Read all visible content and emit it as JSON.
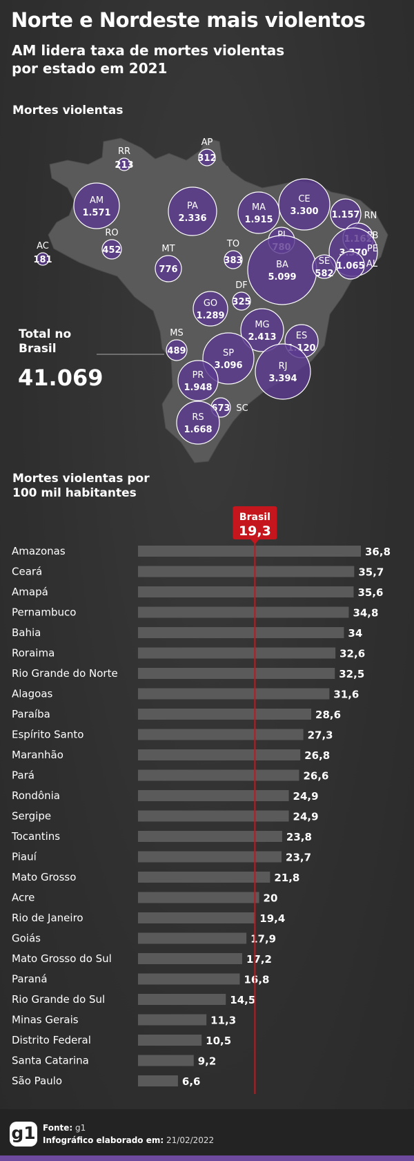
{
  "header": {
    "title": "Norte e Nordeste mais violentos",
    "subtitle": "AM lidera taxa de mortes violentas por estado em 2021"
  },
  "map": {
    "label": "Mortes violentas",
    "total_label": "Total no Brasil",
    "total_value": "41.069",
    "states": [
      {
        "abbr": "RR",
        "value": "213"
      },
      {
        "abbr": "AP",
        "value": "312"
      },
      {
        "abbr": "AM",
        "value": "1.571"
      },
      {
        "abbr": "PA",
        "value": "2.336"
      },
      {
        "abbr": "MA",
        "value": "1.915"
      },
      {
        "abbr": "CE",
        "value": "3.300"
      },
      {
        "abbr": "RN",
        "value": "1.157"
      },
      {
        "abbr": "PB",
        "value": "1.162"
      },
      {
        "abbr": "PE",
        "value": "3.370"
      },
      {
        "abbr": "AL",
        "value": "1.065"
      },
      {
        "abbr": "PI",
        "value": "780"
      },
      {
        "abbr": "AC",
        "value": "181"
      },
      {
        "abbr": "RO",
        "value": "452"
      },
      {
        "abbr": "TO",
        "value": "383"
      },
      {
        "abbr": "BA",
        "value": "5.099"
      },
      {
        "abbr": "SE",
        "value": "582"
      },
      {
        "abbr": "MT",
        "value": "776"
      },
      {
        "abbr": "DF",
        "value": "325"
      },
      {
        "abbr": "GO",
        "value": "1.289"
      },
      {
        "abbr": "MG",
        "value": "2.413"
      },
      {
        "abbr": "ES",
        "value": "1.120"
      },
      {
        "abbr": "MS",
        "value": "489"
      },
      {
        "abbr": "SP",
        "value": "3.096"
      },
      {
        "abbr": "RJ",
        "value": "3.394"
      },
      {
        "abbr": "PR",
        "value": "1.948"
      },
      {
        "abbr": "SC",
        "value": "673"
      },
      {
        "abbr": "RS",
        "value": "1.668"
      }
    ]
  },
  "chart_data": {
    "type": "bar",
    "title": "Mortes violentas por 100 mil habitantes",
    "reference": {
      "label": "Brasil",
      "value": 19.3,
      "display": "19,3"
    },
    "categories": [
      "Amazonas",
      "Ceará",
      "Amapá",
      "Pernambuco",
      "Bahia",
      "Roraima",
      "Rio Grande do Norte",
      "Alagoas",
      "Paraíba",
      "Espírito Santo",
      "Maranhão",
      "Pará",
      "Rondônia",
      "Sergipe",
      "Tocantins",
      "Piauí",
      "Mato Grosso",
      "Acre",
      "Rio de Janeiro",
      "Goiás",
      "Mato Grosso do Sul",
      "Paraná",
      "Rio Grande do Sul",
      "Minas Gerais",
      "Distrito Federal",
      "Santa Catarina",
      "São Paulo"
    ],
    "values": [
      36.8,
      35.7,
      35.6,
      34.8,
      34,
      32.6,
      32.5,
      31.6,
      28.6,
      27.3,
      26.8,
      26.6,
      24.9,
      24.9,
      23.8,
      23.7,
      21.8,
      20,
      19.4,
      17.9,
      17.2,
      16.8,
      14.5,
      11.3,
      10.5,
      9.2,
      6.6
    ],
    "labels": [
      "36,8",
      "35,7",
      "35,6",
      "34,8",
      "34",
      "32,6",
      "32,5",
      "31,6",
      "28,6",
      "27,3",
      "26,8",
      "26,6",
      "24,9",
      "24,9",
      "23,8",
      "23,7",
      "21,8",
      "20",
      "19,4",
      "17,9",
      "17,2",
      "16,8",
      "14,5",
      "11,3",
      "10,5",
      "9,2",
      "6,6"
    ],
    "xlim": [
      0,
      36.8
    ],
    "colors": {
      "bar": "#5a5a5a",
      "reference": "#c4161c"
    }
  },
  "colors": {
    "bubble": "#5c3a8f",
    "map_land": "#5a5a5a",
    "footer_accent": "#6e4a9e"
  },
  "footer": {
    "logo": "g1",
    "source_label": "Fonte:",
    "source_value": "g1",
    "made_label": "Infográfico elaborado em:",
    "made_value": "21/02/2022"
  }
}
